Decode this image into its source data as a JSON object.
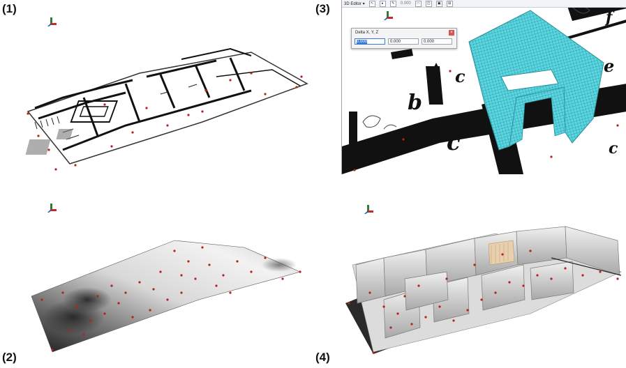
{
  "labels": {
    "p1": "(1)",
    "p2": "(2)",
    "p3": "(3)",
    "p4": "(4)"
  },
  "toolbar": {
    "editor_label": "3D Editor ▾",
    "field_value": "0.000"
  },
  "dialog": {
    "title": "Delta X, Y, Z",
    "close": "×",
    "x_value": "0.000",
    "y_value": "0.000",
    "z_value": "0.000"
  },
  "plan_letters": {
    "b": "b",
    "c1": "c",
    "c2": "c",
    "c3": "c",
    "e": "e",
    "f": "f"
  },
  "colors": {
    "mesh_cyan": "#5ad6e0",
    "control_point": "#b3231c",
    "dialog_close": "#d9534f"
  },
  "icons": [
    "axis-triad-icon",
    "close-icon",
    "pointer-icon"
  ]
}
